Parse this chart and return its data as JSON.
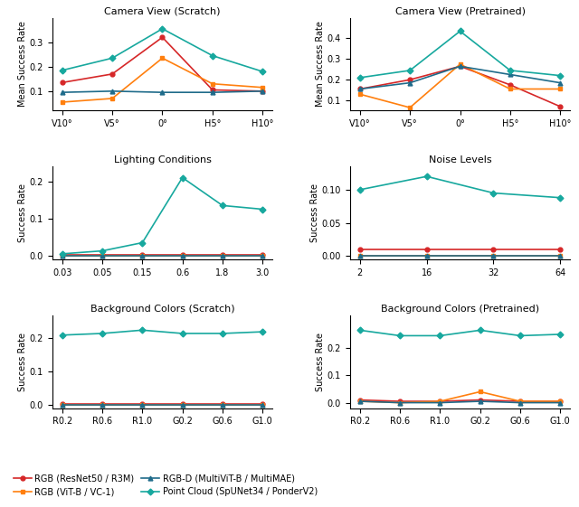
{
  "camera_scratch": {
    "xlabel": [
      "V10°",
      "V5°",
      "0°",
      "H5°",
      "H10°"
    ],
    "title": "Camera View (Scratch)",
    "ylabel": "Mean Success Rate",
    "ylim": [
      0.02,
      0.4
    ],
    "yticks": [
      0.1,
      0.2,
      0.3
    ],
    "series": {
      "rgb_resnet": [
        0.135,
        0.17,
        0.32,
        0.105,
        0.1
      ],
      "rgb_vitb": [
        0.055,
        0.07,
        0.235,
        0.13,
        0.115
      ],
      "rgbd_multivit": [
        0.095,
        0.1,
        0.095,
        0.095,
        0.1
      ],
      "pointcloud": [
        0.185,
        0.235,
        0.355,
        0.245,
        0.18
      ]
    }
  },
  "camera_pretrained": {
    "xlabel": [
      "V10°",
      "V5°",
      "0°",
      "H5°",
      "H10°"
    ],
    "title": "Camera View (Pretrained)",
    "ylabel": "Mean Success Rate",
    "ylim": [
      0.05,
      0.5
    ],
    "yticks": [
      0.1,
      0.2,
      0.3,
      0.4
    ],
    "series": {
      "rgb_resnet": [
        0.155,
        0.2,
        0.265,
        0.175,
        0.07
      ],
      "rgb_vitb": [
        0.13,
        0.065,
        0.275,
        0.155,
        0.155
      ],
      "rgbd_multivit": [
        0.155,
        0.185,
        0.265,
        0.225,
        0.185
      ],
      "pointcloud": [
        0.21,
        0.245,
        0.435,
        0.245,
        0.22
      ]
    }
  },
  "lighting": {
    "xlabel": [
      "0.03",
      "0.05",
      "0.15",
      "0.6",
      "1.8",
      "3.0"
    ],
    "title": "Lighting Conditions",
    "ylabel": "Success Rate",
    "ylim": [
      -0.01,
      0.24
    ],
    "yticks": [
      0.0,
      0.1,
      0.2
    ],
    "series": {
      "rgb_resnet": [
        0.002,
        0.002,
        0.002,
        0.002,
        0.002,
        0.002
      ],
      "rgb_vitb": [
        0.001,
        0.001,
        0.001,
        0.001,
        0.001,
        0.001
      ],
      "rgbd_multivit": [
        0.0,
        0.0,
        0.0,
        0.0,
        0.0,
        0.0
      ],
      "pointcloud": [
        0.005,
        0.013,
        0.035,
        0.21,
        0.135,
        0.125
      ]
    }
  },
  "noise": {
    "xlabel": [
      "2",
      "16",
      "32",
      "64"
    ],
    "title": "Noise Levels",
    "ylabel": "Success Rate",
    "ylim": [
      -0.005,
      0.135
    ],
    "yticks": [
      0.0,
      0.05,
      0.1
    ],
    "series": {
      "rgb_resnet": [
        0.01,
        0.01,
        0.01,
        0.01
      ],
      "rgb_vitb": [
        0.0,
        0.0,
        0.0,
        0.0
      ],
      "rgbd_multivit": [
        0.0,
        0.0,
        0.0,
        0.0
      ],
      "pointcloud": [
        0.1,
        0.12,
        0.095,
        0.088
      ]
    }
  },
  "bg_scratch": {
    "xlabel": [
      "R0.2",
      "R0.6",
      "R1.0",
      "G0.2",
      "G0.6",
      "G1.0"
    ],
    "title": "Background Colors (Scratch)",
    "ylabel": "Success Rate",
    "ylim": [
      -0.01,
      0.27
    ],
    "yticks": [
      0.0,
      0.1,
      0.2
    ],
    "series": {
      "rgb_resnet": [
        0.002,
        0.002,
        0.002,
        0.002,
        0.002,
        0.002
      ],
      "rgb_vitb": [
        0.001,
        0.001,
        0.001,
        0.001,
        0.001,
        0.001
      ],
      "rgbd_multivit": [
        0.0,
        0.0,
        0.0,
        0.0,
        0.0,
        0.0
      ],
      "pointcloud": [
        0.21,
        0.215,
        0.225,
        0.215,
        0.215,
        0.22
      ]
    }
  },
  "bg_pretrained": {
    "xlabel": [
      "R0.2",
      "R0.6",
      "R1.0",
      "G0.2",
      "G0.6",
      "G1.0"
    ],
    "title": "Background Colors (Pretrained)",
    "ylabel": "Success Rate",
    "ylim": [
      -0.02,
      0.32
    ],
    "yticks": [
      0.0,
      0.1,
      0.2
    ],
    "series": {
      "rgb_resnet": [
        0.01,
        0.005,
        0.005,
        0.01,
        0.005,
        0.005
      ],
      "rgb_vitb": [
        0.005,
        0.0,
        0.005,
        0.04,
        0.005,
        0.005
      ],
      "rgbd_multivit": [
        0.005,
        0.0,
        0.0,
        0.005,
        0.0,
        0.0
      ],
      "pointcloud": [
        0.265,
        0.245,
        0.245,
        0.265,
        0.245,
        0.25
      ]
    }
  },
  "colors": {
    "rgb_resnet": "#d62728",
    "rgb_vitb": "#ff7f0e",
    "rgbd_multivit": "#1f6b8a",
    "pointcloud": "#17a89e"
  },
  "markers": {
    "rgb_resnet": "o",
    "rgb_vitb": "s",
    "rgbd_multivit": "^",
    "pointcloud": "D"
  },
  "legend_labels": {
    "rgb_resnet": "RGB (ResNet50 / R3M)",
    "rgb_vitb": "RGB (ViT-B / VC-1)",
    "rgbd_multivit": "RGB-D (MultiViT-B / MultiMAE)",
    "pointcloud": "Point Cloud (SpUNet34 / PonderV2)"
  }
}
